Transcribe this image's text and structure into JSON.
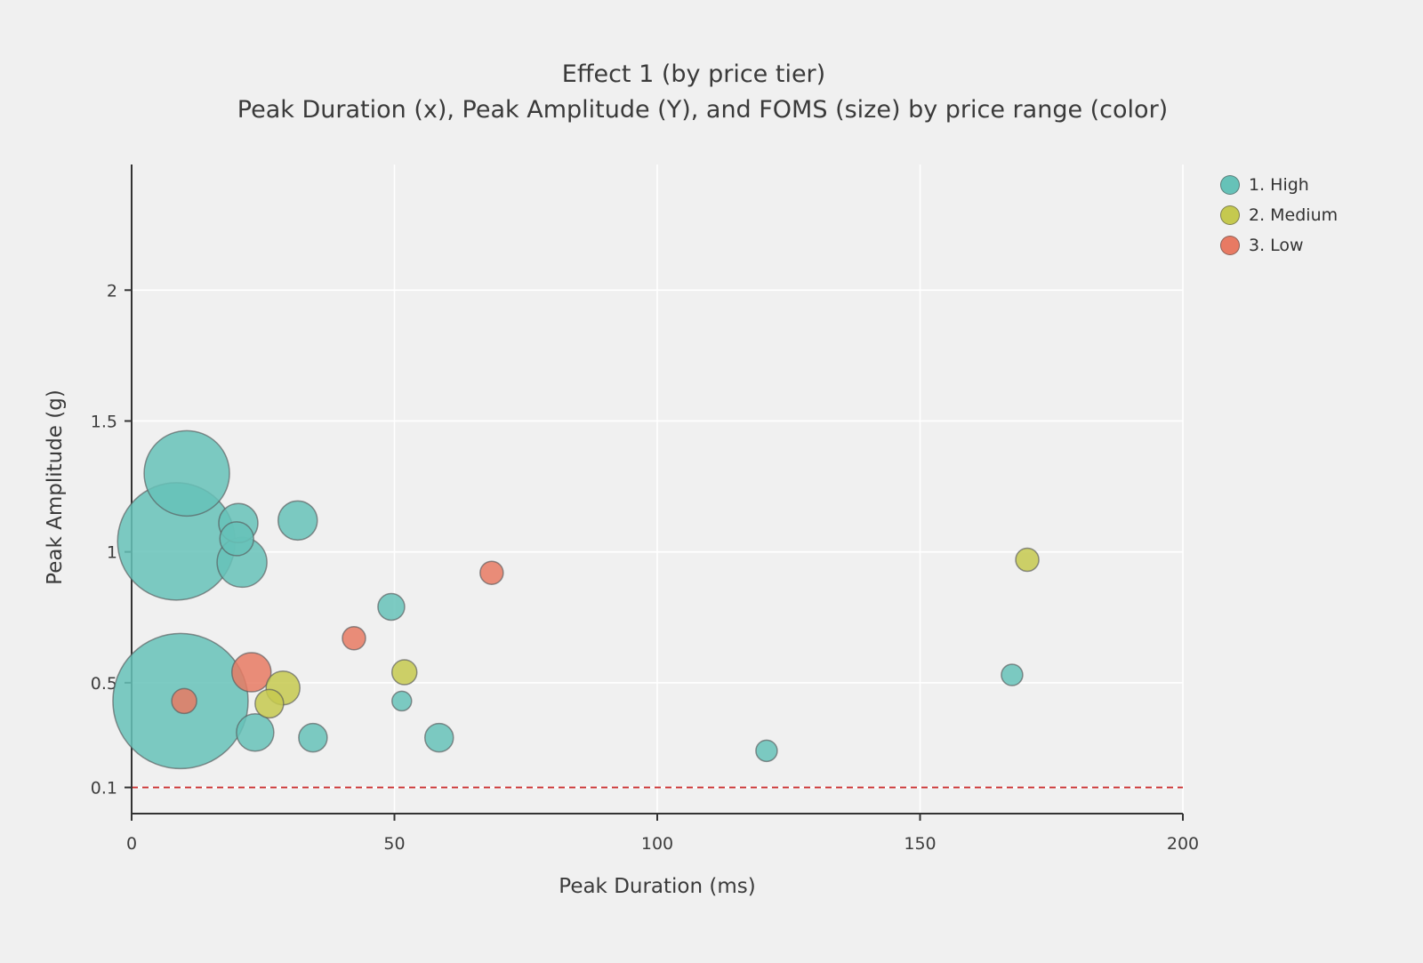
{
  "page": {
    "background": "#f0f0f0"
  },
  "chart_data": {
    "type": "scatter",
    "title": "Effect 1 (by price tier)",
    "subtitle": "Peak Duration (x), Peak Amplitude (Y), and FOMS (size) by price range (color)",
    "xlabel": "Peak Duration (ms)",
    "ylabel": "Peak Amplitude (g)",
    "xlim": [
      0,
      200
    ],
    "ylim": [
      0,
      2.48
    ],
    "xticks": [
      0,
      50,
      100,
      150,
      200
    ],
    "yticks": [
      0.1,
      0.5,
      1,
      1.5,
      2
    ],
    "grid": true,
    "gridline_color": "#ffffff",
    "spine_color": "#333333",
    "tick_label_color": "#3d3d3d",
    "legend_position": "top-right",
    "reference_line": {
      "y": 0.1,
      "color": "#cc3333",
      "style": "dashed"
    },
    "marker_stroke": "#58595b",
    "series": [
      {
        "name": "1. High",
        "color": "#66c2b8",
        "points": [
          {
            "x": 10.5,
            "y": 1.3,
            "r": 48
          },
          {
            "x": 8.5,
            "y": 1.04,
            "r": 66
          },
          {
            "x": 20.3,
            "y": 1.11,
            "r": 22
          },
          {
            "x": 20.0,
            "y": 1.05,
            "r": 19
          },
          {
            "x": 21.0,
            "y": 0.96,
            "r": 28
          },
          {
            "x": 31.6,
            "y": 1.12,
            "r": 22
          },
          {
            "x": 49.4,
            "y": 0.79,
            "r": 15
          },
          {
            "x": 51.4,
            "y": 0.43,
            "r": 11
          },
          {
            "x": 58.5,
            "y": 0.29,
            "r": 16
          },
          {
            "x": 9.3,
            "y": 0.43,
            "r": 76
          },
          {
            "x": 23.5,
            "y": 0.31,
            "r": 21
          },
          {
            "x": 34.5,
            "y": 0.29,
            "r": 16
          },
          {
            "x": 120.8,
            "y": 0.24,
            "r": 12
          },
          {
            "x": 167.5,
            "y": 0.53,
            "r": 12
          }
        ]
      },
      {
        "name": "2. Medium",
        "color": "#c5c94f",
        "points": [
          {
            "x": 51.9,
            "y": 0.54,
            "r": 14
          },
          {
            "x": 28.8,
            "y": 0.48,
            "r": 19
          },
          {
            "x": 26.2,
            "y": 0.42,
            "r": 16
          },
          {
            "x": 170.4,
            "y": 0.97,
            "r": 13
          }
        ]
      },
      {
        "name": "3. Low",
        "color": "#e87a63",
        "points": [
          {
            "x": 68.5,
            "y": 0.92,
            "r": 13
          },
          {
            "x": 42.3,
            "y": 0.67,
            "r": 13
          },
          {
            "x": 22.8,
            "y": 0.54,
            "r": 22
          },
          {
            "x": 10.0,
            "y": 0.43,
            "r": 14
          }
        ]
      }
    ]
  }
}
